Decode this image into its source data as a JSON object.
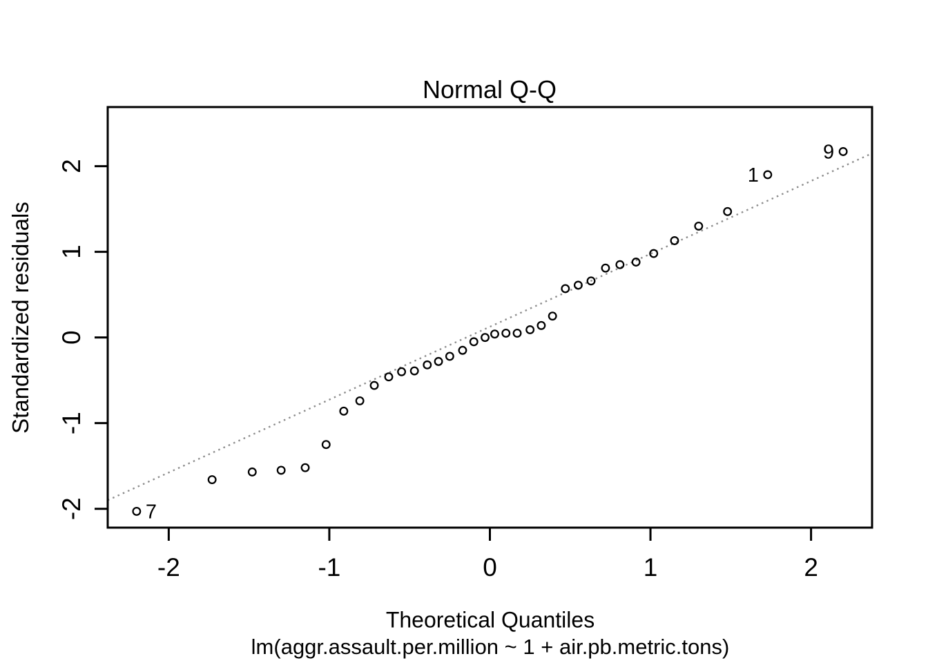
{
  "chart_data": {
    "type": "scatter",
    "title": "Normal Q-Q",
    "xlabel": "Theoretical Quantiles",
    "xlabel_sub": "lm(aggr.assault.per.million ~ 1 + air.pb.metric.tons)",
    "ylabel": "Standardized residuals",
    "xlim": [
      -2.38,
      2.38
    ],
    "ylim": [
      -2.22,
      2.69
    ],
    "x_ticks": [
      -2,
      -1,
      0,
      1,
      2
    ],
    "y_ticks": [
      -2,
      -1,
      0,
      1,
      2
    ],
    "grid": false,
    "legend": "none",
    "marker": "open-circle",
    "ref_line": {
      "x1": -2.38,
      "y1": -1.9,
      "x2": 2.38,
      "y2": 2.15,
      "style": "dotted",
      "color": "#8c8c8c"
    },
    "points": [
      {
        "x": -2.2,
        "y": -2.03,
        "label": "7",
        "label_side": "right"
      },
      {
        "x": -1.73,
        "y": -1.66
      },
      {
        "x": -1.48,
        "y": -1.57
      },
      {
        "x": -1.3,
        "y": -1.55
      },
      {
        "x": -1.15,
        "y": -1.52
      },
      {
        "x": -1.02,
        "y": -1.25
      },
      {
        "x": -0.91,
        "y": -0.86
      },
      {
        "x": -0.81,
        "y": -0.74
      },
      {
        "x": -0.72,
        "y": -0.56
      },
      {
        "x": -0.63,
        "y": -0.46
      },
      {
        "x": -0.55,
        "y": -0.4
      },
      {
        "x": -0.47,
        "y": -0.39
      },
      {
        "x": -0.39,
        "y": -0.32
      },
      {
        "x": -0.32,
        "y": -0.28
      },
      {
        "x": -0.25,
        "y": -0.22
      },
      {
        "x": -0.17,
        "y": -0.15
      },
      {
        "x": -0.1,
        "y": -0.05
      },
      {
        "x": -0.03,
        "y": 0.0
      },
      {
        "x": 0.03,
        "y": 0.04
      },
      {
        "x": 0.1,
        "y": 0.05
      },
      {
        "x": 0.17,
        "y": 0.05
      },
      {
        "x": 0.25,
        "y": 0.09
      },
      {
        "x": 0.32,
        "y": 0.14
      },
      {
        "x": 0.39,
        "y": 0.25
      },
      {
        "x": 0.47,
        "y": 0.57
      },
      {
        "x": 0.55,
        "y": 0.61
      },
      {
        "x": 0.63,
        "y": 0.66
      },
      {
        "x": 0.72,
        "y": 0.81
      },
      {
        "x": 0.81,
        "y": 0.85
      },
      {
        "x": 0.91,
        "y": 0.88
      },
      {
        "x": 1.02,
        "y": 0.98
      },
      {
        "x": 1.15,
        "y": 1.13
      },
      {
        "x": 1.3,
        "y": 1.3
      },
      {
        "x": 1.48,
        "y": 1.47
      },
      {
        "x": 1.73,
        "y": 1.9,
        "label": "1",
        "label_side": "left"
      },
      {
        "x": 2.2,
        "y": 2.17,
        "label": "9",
        "label_side": "left"
      }
    ],
    "colors": {
      "background": "#ffffff",
      "frame": "#000000",
      "text": "#000000",
      "point_stroke": "#000000",
      "ref_line": "#8c8c8c"
    }
  }
}
